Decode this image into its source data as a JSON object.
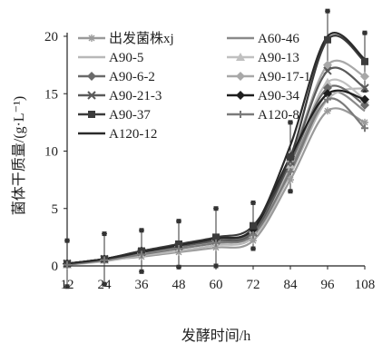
{
  "chart_data": {
    "type": "line",
    "xlabel": "发酵时间/h",
    "ylabel": "菌体干质量/(g·L⁻¹)",
    "x": [
      12,
      24,
      36,
      48,
      60,
      72,
      84,
      96,
      108
    ],
    "xticks": [
      "12",
      "24",
      "36",
      "48",
      "60",
      "72",
      "84",
      "96",
      "108"
    ],
    "yticks": [
      "0",
      "5",
      "10",
      "15",
      "20"
    ],
    "xlim": [
      12,
      108
    ],
    "ylim": [
      0,
      20
    ],
    "grid": false,
    "legend_position": "top-left",
    "series": [
      {
        "name": "出发菌株xj",
        "color": "#9a9a9a",
        "marker": "asterisk",
        "values": [
          0.1,
          0.5,
          0.8,
          1.2,
          1.6,
          2.2,
          7.5,
          13.5,
          12.5
        ]
      },
      {
        "name": "A60-46",
        "color": "#8a8a8a",
        "marker": "none",
        "values": [
          0.1,
          0.5,
          1.0,
          1.5,
          2.0,
          2.8,
          8.5,
          15.0,
          13.5
        ]
      },
      {
        "name": "A90-5",
        "color": "#b8b8b8",
        "marker": "none",
        "values": [
          0.1,
          0.4,
          0.9,
          1.3,
          1.8,
          2.5,
          8.0,
          14.5,
          15.5
        ]
      },
      {
        "name": "A90-13",
        "color": "#c0c0c0",
        "marker": "triangle",
        "values": [
          0.1,
          0.5,
          1.1,
          1.6,
          2.1,
          2.8,
          8.8,
          16.0,
          14.5
        ]
      },
      {
        "name": "A90-6-2",
        "color": "#6a6a6a",
        "marker": "diamond",
        "values": [
          0.2,
          0.6,
          1.2,
          1.8,
          2.3,
          3.0,
          9.0,
          15.5,
          14.0
        ]
      },
      {
        "name": "A90-17-1",
        "color": "#a8a8a8",
        "marker": "diamond",
        "values": [
          0.1,
          0.5,
          1.1,
          1.7,
          2.2,
          2.9,
          9.2,
          17.5,
          16.5
        ]
      },
      {
        "name": "A90-21-3",
        "color": "#5a5a5a",
        "marker": "x",
        "values": [
          0.2,
          0.6,
          1.2,
          1.7,
          2.2,
          2.9,
          9.1,
          17.0,
          15.5
        ]
      },
      {
        "name": "A90-34",
        "color": "#1e1e1e",
        "marker": "diamond",
        "values": [
          0.2,
          0.6,
          1.3,
          1.8,
          2.4,
          3.2,
          9.5,
          15.0,
          14.5
        ]
      },
      {
        "name": "A90-37",
        "color": "#3c3c3c",
        "marker": "square",
        "values": [
          0.2,
          0.6,
          1.3,
          1.9,
          2.5,
          3.5,
          9.5,
          19.7,
          17.8
        ]
      },
      {
        "name": "A120-8",
        "color": "#7a7a7a",
        "marker": "plus",
        "values": [
          0.1,
          0.5,
          1.0,
          1.5,
          2.0,
          2.7,
          8.2,
          14.5,
          12.0
        ]
      },
      {
        "name": "A120-12",
        "color": "#2a2a2a",
        "marker": "none",
        "values": [
          0.2,
          0.6,
          1.2,
          1.8,
          2.4,
          3.3,
          10.5,
          20.0,
          18.0
        ]
      }
    ],
    "error_bars": {
      "series": "A90-37",
      "err": [
        2.0,
        2.2,
        1.8,
        2.0,
        2.5,
        2.0,
        3.0,
        2.5,
        2.5
      ]
    }
  }
}
